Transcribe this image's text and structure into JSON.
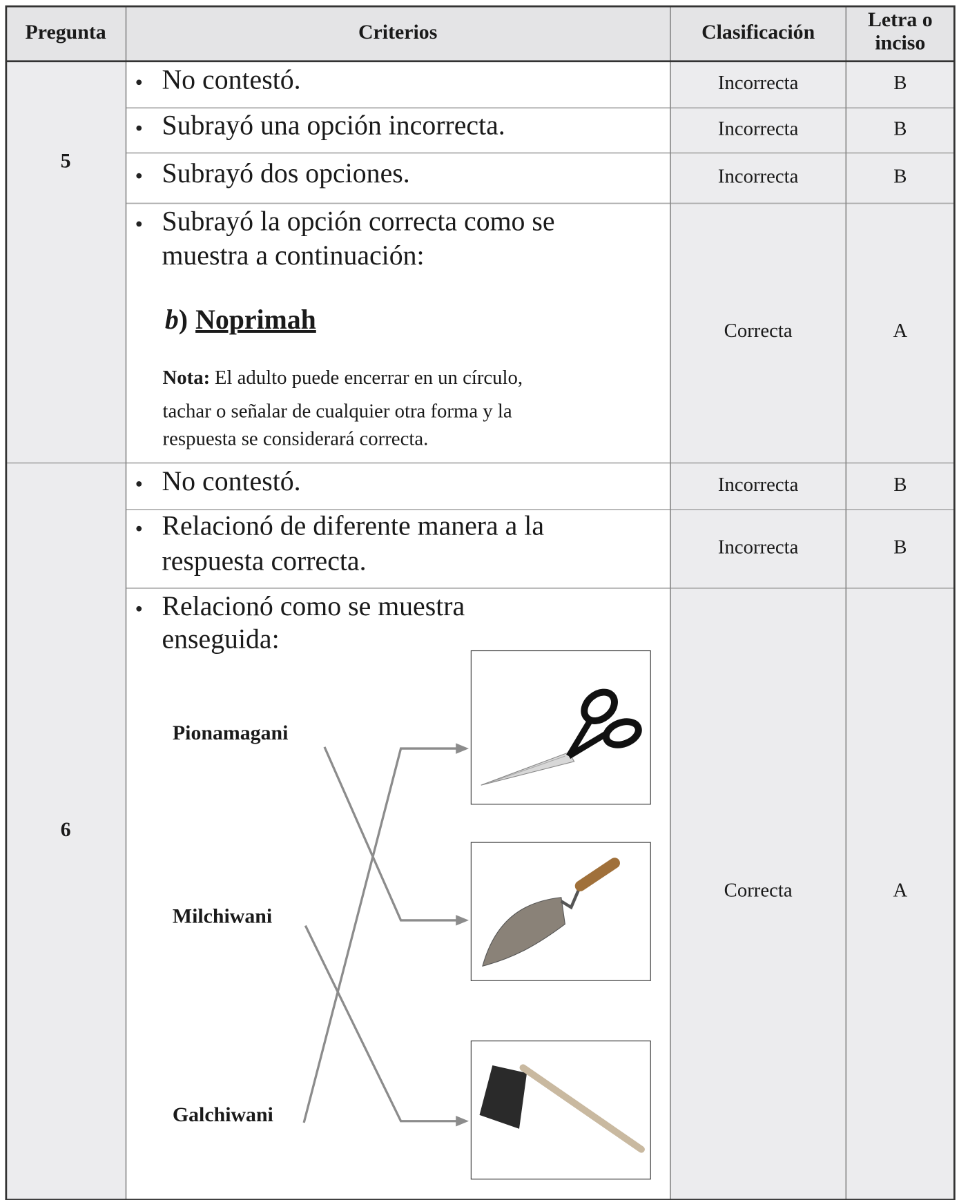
{
  "header": {
    "pregunta": "Pregunta",
    "criterios": "Criterios",
    "clasificacion": "Clasificación",
    "letra": [
      "Letra o",
      "inciso"
    ]
  },
  "questions": [
    {
      "number": "5",
      "rows": [
        {
          "criterio": [
            "No contestó."
          ],
          "clasificacion": "Incorrecta",
          "letra": "B"
        },
        {
          "criterio": [
            "Subrayó una opción incorrecta."
          ],
          "clasificacion": "Incorrecta",
          "letra": "B"
        },
        {
          "criterio": [
            "Subrayó dos opciones."
          ],
          "clasificacion": "Incorrecta",
          "letra": "B"
        },
        {
          "criterio": [
            "Subrayó la opción correcta como se",
            "muestra a continuación:"
          ],
          "option_letter": "b",
          "option_suffix": ")",
          "option_text": "Noprimah",
          "note_label": "Nota:",
          "note_lines": [
            "El adulto puede encerrar en un círculo,",
            "tachar o señalar de cualquier otra forma y la",
            "respuesta se considerará correcta."
          ],
          "clasificacion": "Correcta",
          "letra": "A"
        }
      ]
    },
    {
      "number": "6",
      "rows": [
        {
          "criterio": [
            "No contestó."
          ],
          "clasificacion": "Incorrecta",
          "letra": "B"
        },
        {
          "criterio": [
            "Relacionó de diferente manera a la",
            "respuesta correcta."
          ],
          "clasificacion": "Incorrecta",
          "letra": "B"
        },
        {
          "criterio": [
            "Relacionó como se muestra",
            "enseguida:"
          ],
          "words": [
            "Pionamagani",
            "Milchiwani",
            "Galchiwani"
          ],
          "clasificacion": "Correcta",
          "letra": "A"
        }
      ]
    }
  ]
}
